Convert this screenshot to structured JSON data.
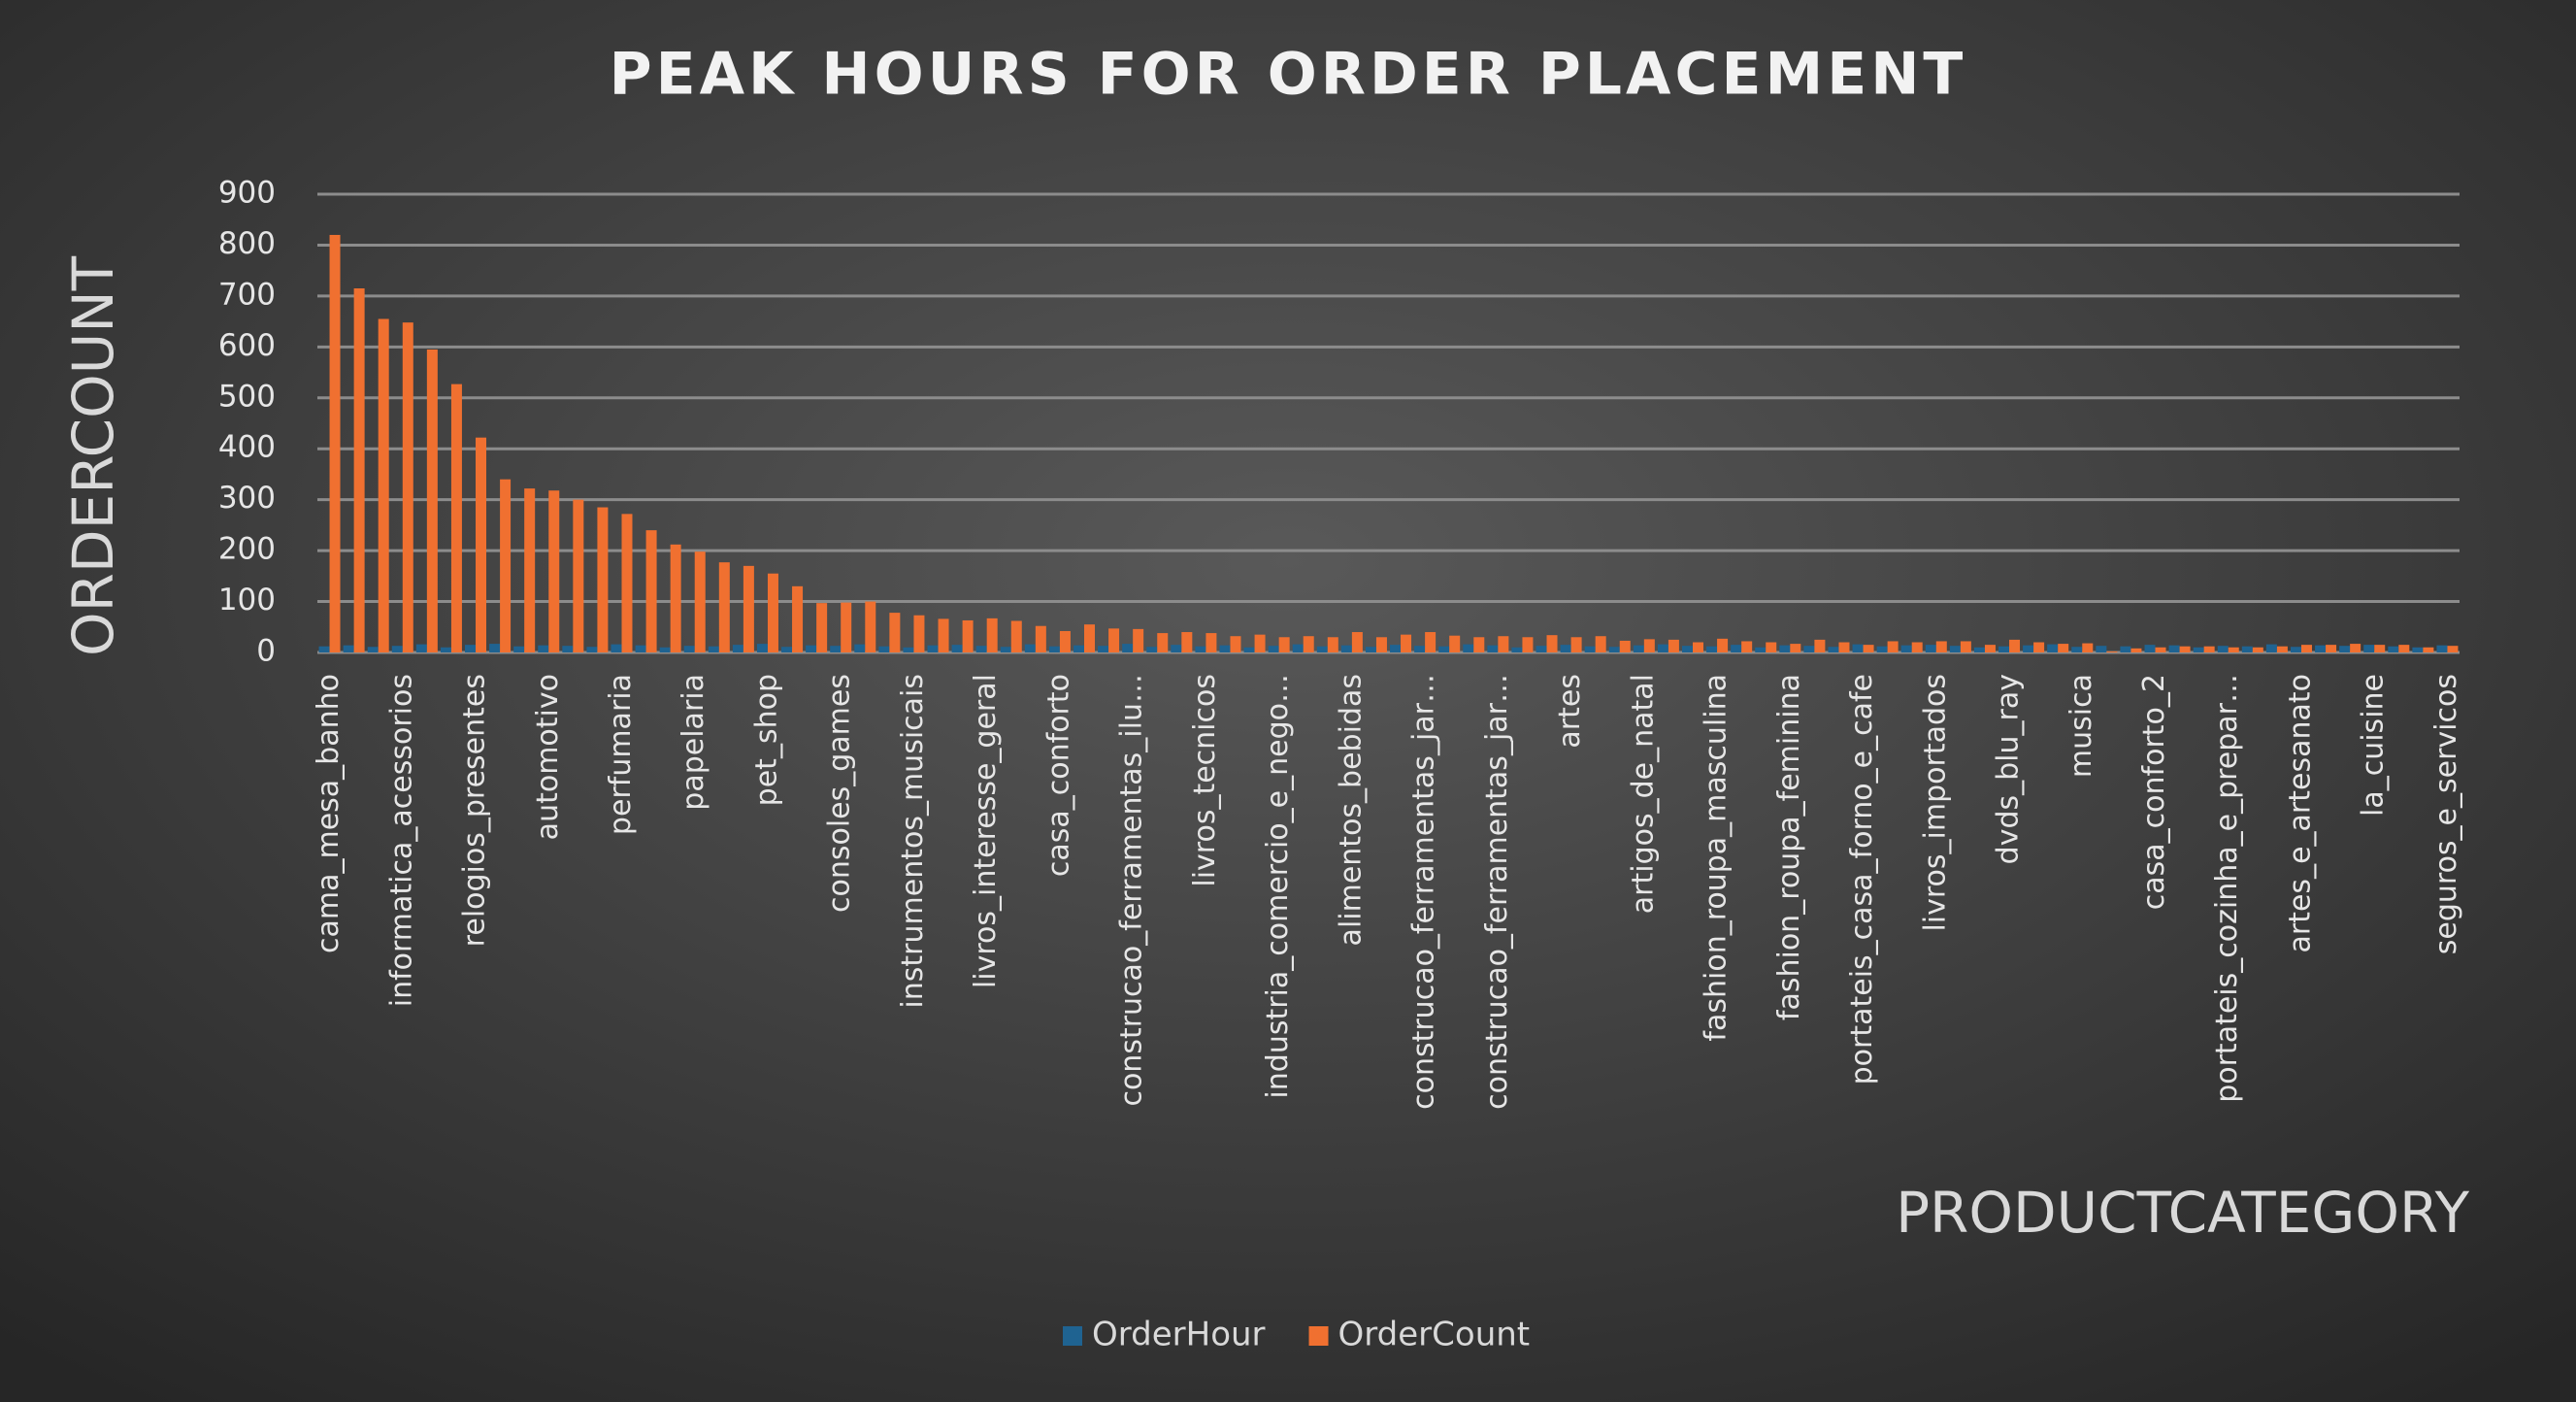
{
  "chart_data": {
    "type": "bar",
    "title": "PEAK HOURS FOR ORDER PLACEMENT",
    "x_label": "PRODUCTCATEGORY",
    "y_label": "ORDERCOUNT",
    "categories": [
      "cama_mesa_banho",
      null,
      null,
      "informatica_acessorios",
      null,
      null,
      "relogios_presentes",
      null,
      null,
      "automotivo",
      null,
      null,
      "perfumaria",
      null,
      null,
      "papelaria",
      null,
      null,
      "pet_shop",
      null,
      null,
      "consoles_games",
      null,
      null,
      "instrumentos_musicais",
      null,
      null,
      "livros_interesse_geral",
      null,
      null,
      "casa_conforto",
      null,
      null,
      "construcao_ferramentas_ilu…",
      null,
      null,
      "livros_tecnicos",
      null,
      null,
      "industria_comercio_e_nego…",
      null,
      null,
      "alimentos_bebidas",
      null,
      null,
      "construcao_ferramentas_jar…",
      null,
      null,
      "construcao_ferramentas_jar…",
      null,
      null,
      "artes",
      null,
      null,
      "artigos_de_natal",
      null,
      null,
      "fashion_roupa_masculina",
      null,
      null,
      "fashion_roupa_feminina",
      null,
      null,
      "portateis_casa_forno_e_cafe",
      null,
      null,
      "livros_importados",
      null,
      null,
      "dvds_blu_ray",
      null,
      null,
      "musica",
      null,
      null,
      "casa_conforto_2",
      null,
      null,
      "portateis_cozinha_e_prepar…",
      null,
      null,
      "artes_e_artesanato",
      null,
      null,
      "la_cuisine",
      null,
      null,
      "seguros_e_servicos"
    ],
    "series": [
      {
        "name": "OrderHour",
        "color": "#1f6391",
        "values": [
          12,
          14,
          11,
          13,
          16,
          10,
          15,
          17,
          12,
          14,
          13,
          11,
          16,
          14,
          10,
          13,
          12,
          15,
          17,
          11,
          14,
          13,
          16,
          12,
          10,
          14,
          15,
          13,
          11,
          16,
          12,
          14,
          13,
          17,
          11,
          15,
          12,
          14,
          10,
          13,
          16,
          12,
          14,
          11,
          15,
          13,
          12,
          16,
          14,
          10,
          13,
          15,
          12,
          11,
          14,
          16,
          13,
          12,
          15,
          10,
          14,
          13,
          11,
          16,
          12,
          14,
          15,
          13,
          10,
          12,
          14,
          16,
          11,
          13,
          12,
          15,
          14,
          10,
          13,
          12,
          16,
          11,
          14,
          13,
          15,
          12,
          10,
          14
        ]
      },
      {
        "name": "OrderCount",
        "color": "#f07030",
        "values": [
          820,
          715,
          655,
          648,
          595,
          527,
          422,
          340,
          322,
          318,
          300,
          285,
          272,
          240,
          212,
          198,
          177,
          170,
          155,
          130,
          97,
          98,
          100,
          78,
          73,
          66,
          63,
          67,
          62,
          52,
          42,
          55,
          47,
          46,
          38,
          40,
          38,
          32,
          35,
          30,
          32,
          30,
          40,
          30,
          35,
          40,
          33,
          30,
          32,
          30,
          34,
          30,
          32,
          23,
          26,
          25,
          20,
          27,
          22,
          20,
          17,
          25,
          20,
          15,
          22,
          20,
          22,
          22,
          15,
          25,
          20,
          17,
          18,
          2,
          8,
          10,
          12,
          12,
          10,
          10,
          12,
          15,
          15,
          17,
          15,
          15,
          10,
          13
        ]
      }
    ],
    "ylim": [
      0,
      900
    ],
    "yticks": [
      0,
      100,
      200,
      300,
      400,
      500,
      600,
      700,
      800,
      900
    ],
    "grid": true,
    "legend": "bottom"
  }
}
